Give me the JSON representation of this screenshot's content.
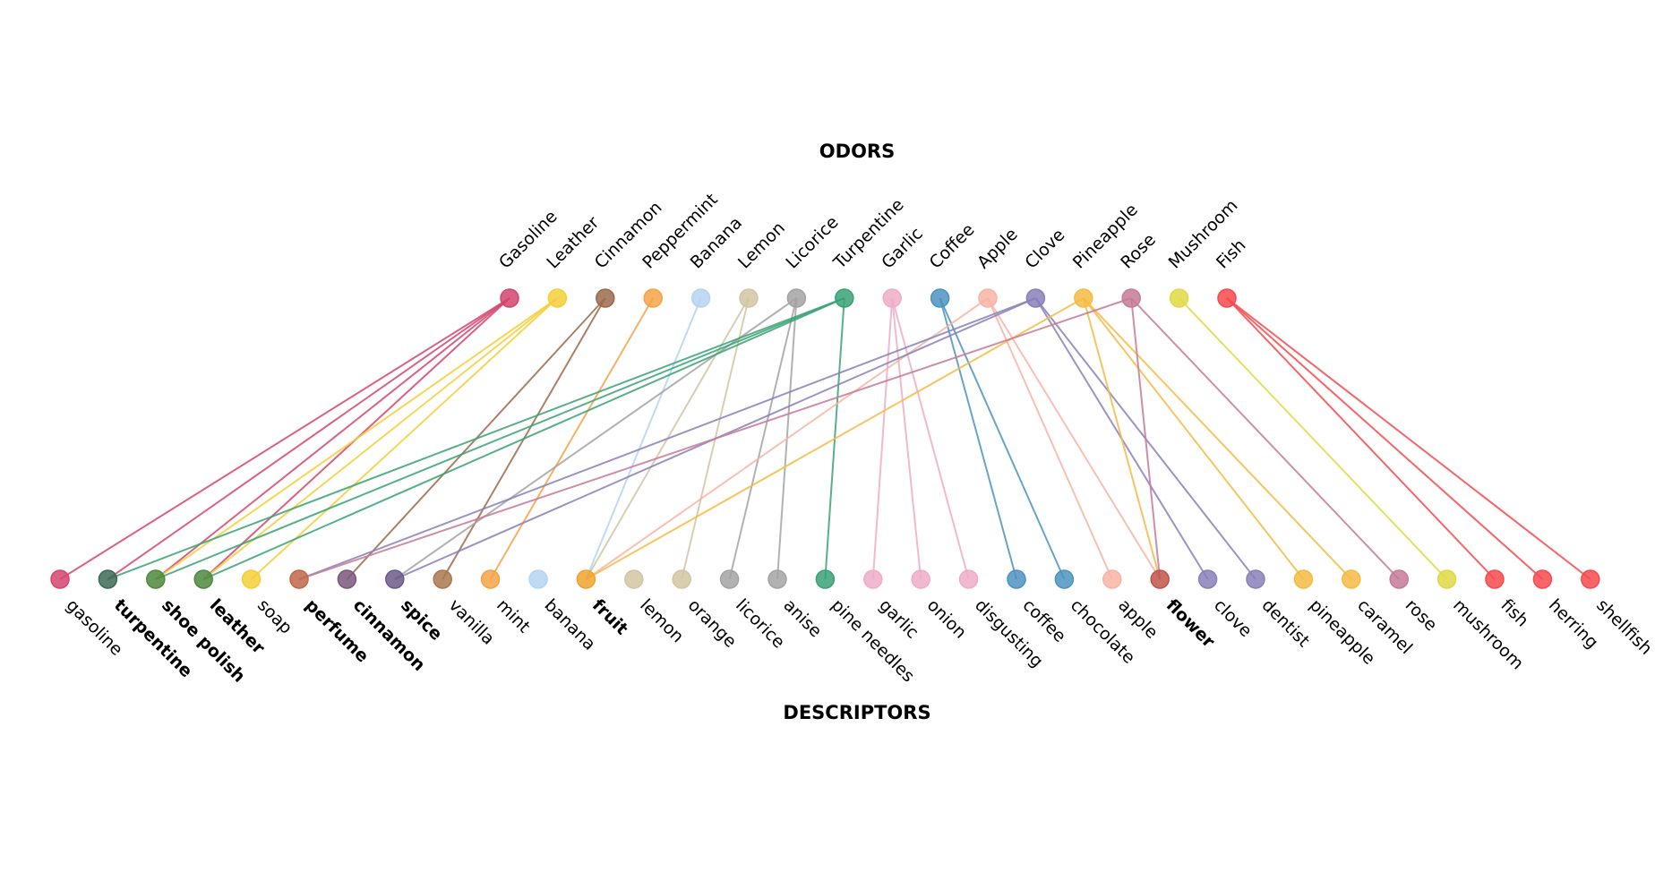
{
  "title": "ODORS",
  "bottom_title": "DESCRIPTORS",
  "odors": [
    {
      "label": "Gasoline",
      "color": "#d5456f"
    },
    {
      "label": "Leather",
      "color": "#f5cf3a"
    },
    {
      "label": "Cinnamon",
      "color": "#9b6b4b"
    },
    {
      "label": "Peppermint",
      "color": "#f5a347"
    },
    {
      "label": "Banana",
      "color": "#b5d4f2"
    },
    {
      "label": "Lemon",
      "color": "#d2c6a2"
    },
    {
      "label": "Licorice",
      "color": "#a3a3a3"
    },
    {
      "label": "Turpentine",
      "color": "#3aa276"
    },
    {
      "label": "Garlic",
      "color": "#eeadc8"
    },
    {
      "label": "Coffee",
      "color": "#4d93c1"
    },
    {
      "label": "Apple",
      "color": "#f8b4a6"
    },
    {
      "label": "Clove",
      "color": "#8a80b9"
    },
    {
      "label": "Pineapple",
      "color": "#f6bb43"
    },
    {
      "label": "Rose",
      "color": "#c77a98"
    },
    {
      "label": "Mushroom",
      "color": "#e1d945"
    },
    {
      "label": "Fish",
      "color": "#f64a4e"
    }
  ],
  "descriptors": [
    {
      "label": "gasoline",
      "color": "#d5456f",
      "bold": false
    },
    {
      "label": "turpentine",
      "color": "#3d6a55",
      "bold": true
    },
    {
      "label": "shoe polish",
      "color": "#4e8a3d",
      "bold": true
    },
    {
      "label": "leather",
      "color": "#4e8a3d",
      "bold": true
    },
    {
      "label": "soap",
      "color": "#f5cf3a",
      "bold": false
    },
    {
      "label": "perfume",
      "color": "#c0664a",
      "bold": true
    },
    {
      "label": "cinnamon",
      "color": "#7a587c",
      "bold": true
    },
    {
      "label": "spice",
      "color": "#6d5a88",
      "bold": true
    },
    {
      "label": "vanilla",
      "color": "#a9784f",
      "bold": false
    },
    {
      "label": "mint",
      "color": "#f5a347",
      "bold": false
    },
    {
      "label": "banana",
      "color": "#b5d4f2",
      "bold": false
    },
    {
      "label": "fruit",
      "color": "#f0a22f",
      "bold": true
    },
    {
      "label": "lemon",
      "color": "#d2c6a2",
      "bold": false
    },
    {
      "label": "orange",
      "color": "#d2c6a2",
      "bold": false
    },
    {
      "label": "licorice",
      "color": "#a3a3a3",
      "bold": false
    },
    {
      "label": "anise",
      "color": "#a3a3a3",
      "bold": false
    },
    {
      "label": "pine needles",
      "color": "#3aa276",
      "bold": false
    },
    {
      "label": "garlic",
      "color": "#eeadc8",
      "bold": false
    },
    {
      "label": "onion",
      "color": "#eeadc8",
      "bold": false
    },
    {
      "label": "disgusting",
      "color": "#eeadc8",
      "bold": false
    },
    {
      "label": "coffee",
      "color": "#4d93c1",
      "bold": false
    },
    {
      "label": "chocolate",
      "color": "#4d93c1",
      "bold": false
    },
    {
      "label": "apple",
      "color": "#f8b4a6",
      "bold": false
    },
    {
      "label": "flower",
      "color": "#c0544a",
      "bold": true
    },
    {
      "label": "clove",
      "color": "#8a80b9",
      "bold": false
    },
    {
      "label": "dentist",
      "color": "#8a80b9",
      "bold": false
    },
    {
      "label": "pineapple",
      "color": "#f6bb43",
      "bold": false
    },
    {
      "label": "caramel",
      "color": "#f6bb43",
      "bold": false
    },
    {
      "label": "rose",
      "color": "#c77a98",
      "bold": false
    },
    {
      "label": "mushroom",
      "color": "#e1d945",
      "bold": false
    },
    {
      "label": "fish",
      "color": "#f64a4e",
      "bold": false
    },
    {
      "label": "herring",
      "color": "#f64a4e",
      "bold": false
    },
    {
      "label": "shellfish",
      "color": "#f64a4e",
      "bold": false
    }
  ],
  "links": [
    [
      0,
      0
    ],
    [
      0,
      1
    ],
    [
      0,
      2
    ],
    [
      0,
      3
    ],
    [
      1,
      2
    ],
    [
      1,
      3
    ],
    [
      1,
      4
    ],
    [
      2,
      6
    ],
    [
      2,
      8
    ],
    [
      3,
      9
    ],
    [
      4,
      11
    ],
    [
      5,
      11
    ],
    [
      5,
      13
    ],
    [
      6,
      14
    ],
    [
      6,
      15
    ],
    [
      6,
      7
    ],
    [
      7,
      1
    ],
    [
      7,
      2
    ],
    [
      7,
      3
    ],
    [
      7,
      16
    ],
    [
      8,
      17
    ],
    [
      8,
      18
    ],
    [
      8,
      19
    ],
    [
      9,
      20
    ],
    [
      9,
      21
    ],
    [
      10,
      22
    ],
    [
      10,
      23
    ],
    [
      10,
      11
    ],
    [
      11,
      5
    ],
    [
      11,
      7
    ],
    [
      11,
      24
    ],
    [
      11,
      25
    ],
    [
      12,
      26
    ],
    [
      12,
      27
    ],
    [
      12,
      11
    ],
    [
      12,
      23
    ],
    [
      13,
      23
    ],
    [
      13,
      28
    ],
    [
      13,
      5
    ],
    [
      14,
      29
    ],
    [
      15,
      30
    ],
    [
      15,
      31
    ],
    [
      15,
      32
    ]
  ]
}
